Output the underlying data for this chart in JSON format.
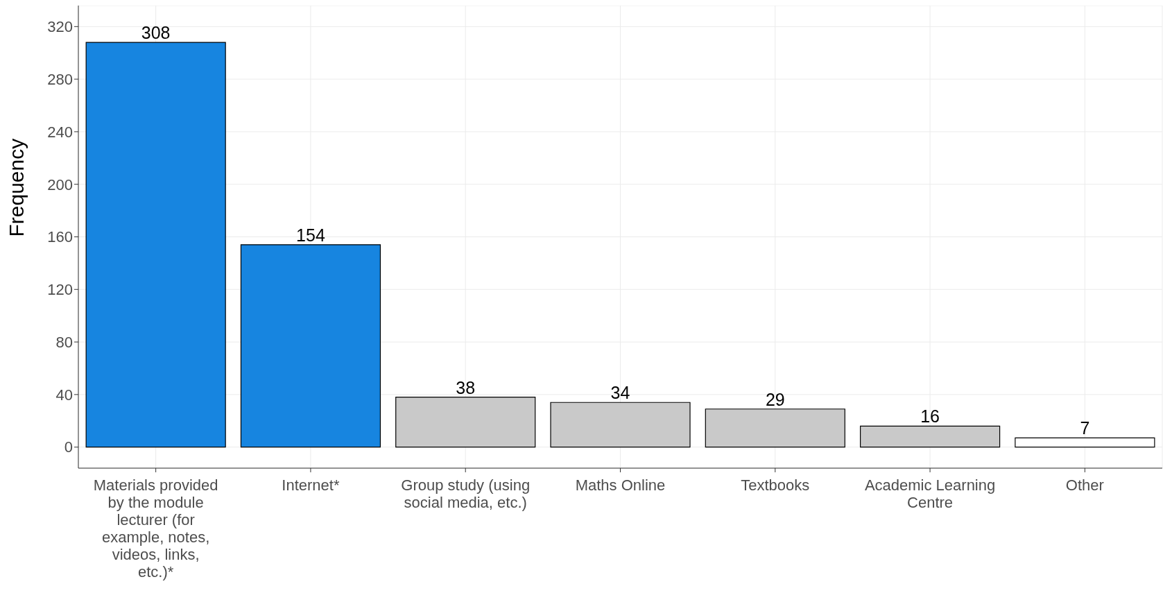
{
  "chart_data": {
    "type": "bar",
    "ylabel": "Frequency",
    "categories": [
      "Materials provided by the module lecturer (for example, notes, videos, links, etc.)*",
      "Internet*",
      "Group study (using social media, etc.)",
      "Maths Online",
      "Textbooks",
      "Academic Learning Centre",
      "Other"
    ],
    "values": [
      308,
      154,
      38,
      34,
      29,
      16,
      7
    ],
    "colors": [
      "#1785e0",
      "#1785e0",
      "#c9c9c9",
      "#c9c9c9",
      "#c9c9c9",
      "#c9c9c9",
      "#ffffff"
    ],
    "ylim": [
      -16,
      336
    ],
    "yticks": [
      0,
      40,
      80,
      120,
      160,
      200,
      240,
      280,
      320
    ],
    "grid": true,
    "data_labels": true
  }
}
